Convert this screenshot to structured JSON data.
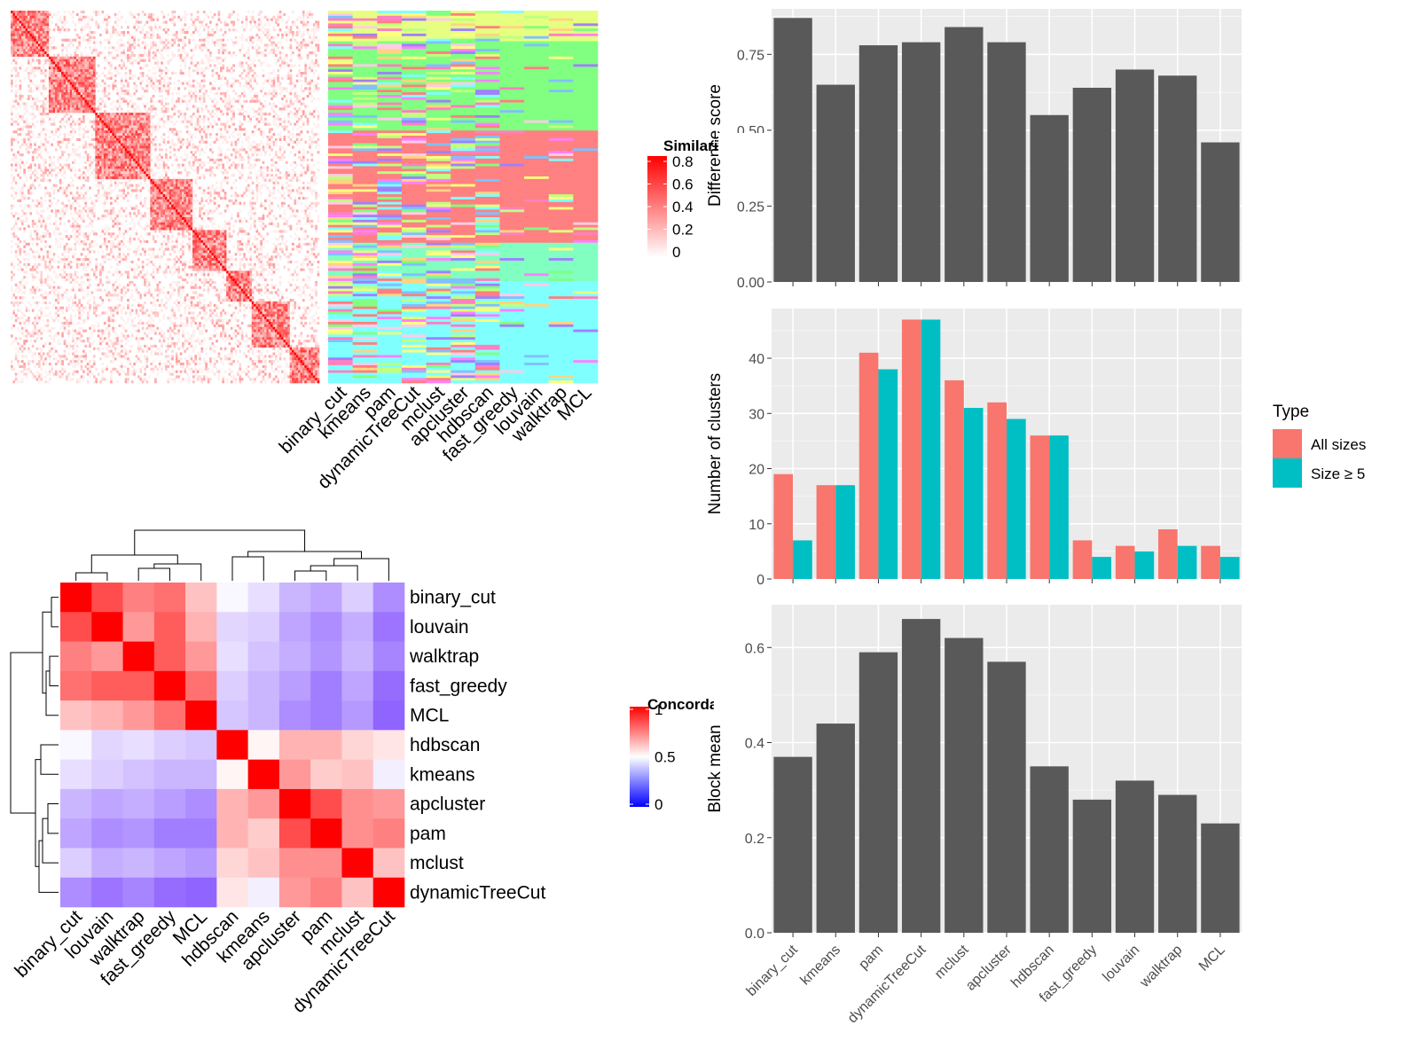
{
  "methods_order": [
    "binary_cut",
    "kmeans",
    "pam",
    "dynamicTreeCut",
    "mclust",
    "apcluster",
    "hdbscan",
    "fast_greedy",
    "louvain",
    "walktrap",
    "MCL"
  ],
  "chart_data": [
    {
      "id": "similarity-heatmap",
      "type": "heatmap",
      "legend_title": "Similarity",
      "legend_ticks": [
        "0.8",
        "0.6",
        "0.4",
        "0.2",
        "0"
      ],
      "value_range": [
        0,
        0.9
      ],
      "colors": {
        "low": "#ffffff",
        "high": "#ff0000"
      },
      "block_sizes": [
        18,
        22,
        26,
        20,
        16,
        12,
        18,
        14
      ],
      "n_terms": 146
    },
    {
      "id": "cluster-assignment-heatmap",
      "type": "heatmap",
      "columns": [
        "binary_cut",
        "kmeans",
        "pam",
        "dynamicTreeCut",
        "mclust",
        "apcluster",
        "hdbscan",
        "fast_greedy",
        "louvain",
        "walktrap",
        "MCL"
      ],
      "group_colors": [
        "#ff8080",
        "#80ff80",
        "#80ffc0",
        "#80ffff",
        "#e6ff80"
      ],
      "palette": [
        "#80ffff",
        "#e6ff80",
        "#ff8080",
        "#80ff80",
        "#ff80c0",
        "#a080ff",
        "#ffd480",
        "#ff80ff",
        "#80c0ff",
        "#ffcce6",
        "#c0ff80",
        "#ffff80"
      ]
    },
    {
      "id": "concordance-heatmap",
      "type": "heatmap",
      "legend_title": "Concordance",
      "legend_ticks": [
        "1",
        "0.5",
        "0"
      ],
      "rows": [
        "binary_cut",
        "louvain",
        "walktrap",
        "fast_greedy",
        "MCL",
        "hdbscan",
        "kmeans",
        "apcluster",
        "pam",
        "mclust",
        "dynamicTreeCut"
      ],
      "columns": [
        "binary_cut",
        "louvain",
        "walktrap",
        "fast_greedy",
        "MCL",
        "hdbscan",
        "kmeans",
        "apcluster",
        "pam",
        "mclust",
        "dynamicTreeCut"
      ],
      "colors": {
        "low": "#0000ff",
        "mid": "#ffffff",
        "high": "#ff0000"
      },
      "values": [
        [
          1.0,
          0.85,
          0.75,
          0.78,
          0.62,
          0.48,
          0.42,
          0.32,
          0.28,
          0.38,
          0.22
        ],
        [
          0.85,
          1.0,
          0.7,
          0.82,
          0.65,
          0.4,
          0.38,
          0.28,
          0.22,
          0.3,
          0.16
        ],
        [
          0.75,
          0.7,
          1.0,
          0.82,
          0.7,
          0.42,
          0.35,
          0.3,
          0.24,
          0.32,
          0.2
        ],
        [
          0.78,
          0.82,
          0.82,
          1.0,
          0.78,
          0.38,
          0.32,
          0.26,
          0.18,
          0.28,
          0.14
        ],
        [
          0.62,
          0.65,
          0.7,
          0.78,
          1.0,
          0.36,
          0.32,
          0.22,
          0.18,
          0.25,
          0.12
        ],
        [
          0.48,
          0.4,
          0.42,
          0.38,
          0.36,
          1.0,
          0.52,
          0.65,
          0.65,
          0.58,
          0.55
        ],
        [
          0.42,
          0.38,
          0.35,
          0.32,
          0.32,
          0.52,
          1.0,
          0.7,
          0.6,
          0.62,
          0.46
        ],
        [
          0.32,
          0.28,
          0.3,
          0.26,
          0.22,
          0.65,
          0.7,
          1.0,
          0.85,
          0.72,
          0.7
        ],
        [
          0.28,
          0.22,
          0.24,
          0.18,
          0.18,
          0.65,
          0.6,
          0.85,
          1.0,
          0.72,
          0.75
        ],
        [
          0.38,
          0.3,
          0.32,
          0.28,
          0.25,
          0.58,
          0.62,
          0.72,
          0.72,
          1.0,
          0.62
        ],
        [
          0.22,
          0.16,
          0.2,
          0.14,
          0.12,
          0.55,
          0.46,
          0.7,
          0.75,
          0.62,
          1.0
        ]
      ]
    },
    {
      "id": "difference-score-bar",
      "type": "bar",
      "categories": [
        "binary_cut",
        "kmeans",
        "pam",
        "dynamicTreeCut",
        "mclust",
        "apcluster",
        "hdbscan",
        "fast_greedy",
        "louvain",
        "walktrap",
        "MCL"
      ],
      "values": [
        0.87,
        0.65,
        0.78,
        0.79,
        0.84,
        0.79,
        0.55,
        0.64,
        0.7,
        0.68,
        0.46
      ],
      "ylabel": "Difference score",
      "ylim": [
        0,
        0.9
      ],
      "yticks": [
        0.0,
        0.25,
        0.5,
        0.75
      ],
      "ytick_labels": [
        "0.00",
        "0.25",
        "0.50",
        "0.75"
      ],
      "grid": true,
      "color": "#595959"
    },
    {
      "id": "number-of-clusters-bar",
      "type": "bar",
      "categories": [
        "binary_cut",
        "kmeans",
        "pam",
        "dynamicTreeCut",
        "mclust",
        "apcluster",
        "hdbscan",
        "fast_greedy",
        "louvain",
        "walktrap",
        "MCL"
      ],
      "series": [
        {
          "name": "All sizes",
          "color": "#f8766d",
          "values": [
            19,
            17,
            41,
            47,
            36,
            32,
            26,
            7,
            6,
            9,
            6
          ]
        },
        {
          "name": "Size ≥ 5",
          "color": "#00bfc4",
          "values": [
            7,
            17,
            38,
            47,
            31,
            29,
            26,
            4,
            5,
            6,
            4
          ]
        }
      ],
      "ylabel": "Number of clusters",
      "ylim": [
        0,
        49
      ],
      "yticks": [
        0,
        10,
        20,
        30,
        40
      ],
      "ytick_labels": [
        "0",
        "10",
        "20",
        "30",
        "40"
      ],
      "legend_title": "Type",
      "legend_position": "right",
      "grid": true
    },
    {
      "id": "block-mean-bar",
      "type": "bar",
      "categories": [
        "binary_cut",
        "kmeans",
        "pam",
        "dynamicTreeCut",
        "mclust",
        "apcluster",
        "hdbscan",
        "fast_greedy",
        "louvain",
        "walktrap",
        "MCL"
      ],
      "values": [
        0.37,
        0.44,
        0.59,
        0.66,
        0.62,
        0.57,
        0.35,
        0.28,
        0.32,
        0.29,
        0.23
      ],
      "ylabel": "Block mean",
      "ylim": [
        0,
        0.69
      ],
      "yticks": [
        0.0,
        0.2,
        0.4,
        0.6
      ],
      "ytick_labels": [
        "0.0",
        "0.2",
        "0.4",
        "0.6"
      ],
      "grid": true,
      "color": "#595959"
    }
  ]
}
